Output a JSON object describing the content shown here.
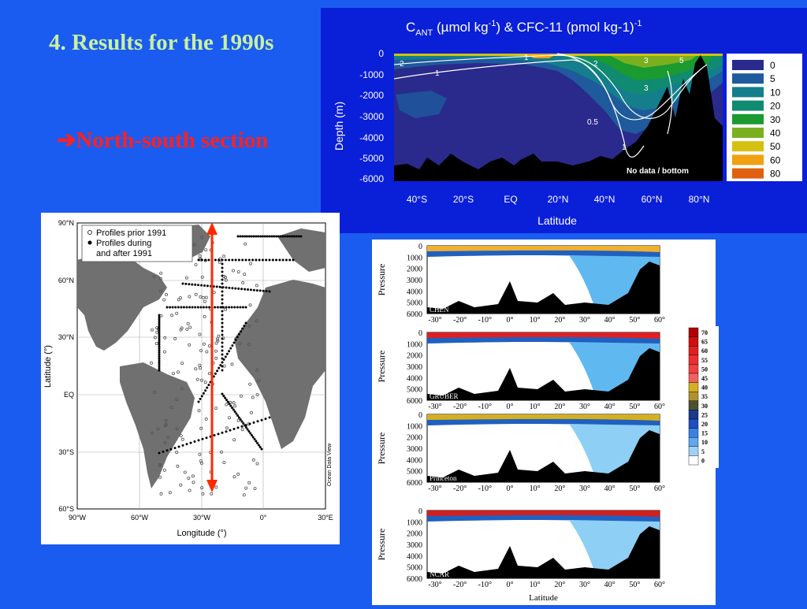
{
  "slide": {
    "title": "4. Results for the 1990s",
    "arrow_glyph": "➔",
    "subtitle": "North-south section"
  },
  "top_section": {
    "title_main": "C",
    "title_sub": "ANT",
    "title_rest": " (µmol kg",
    "title_sup1": "-1",
    "title_rest2": ") & CFC-11 (pmol  kg-1)",
    "title_sup2": "-1",
    "ylabel": "Depth (m)",
    "xlabel": "Latitude",
    "depth_ticks": [
      "0",
      "-1000",
      "-2000",
      "-3000",
      "-4000",
      "-5000",
      "-6000"
    ],
    "lat_ticks": [
      "40°S",
      "20°S",
      "EQ",
      "20°N",
      "40°N",
      "60°N",
      "80°N"
    ],
    "contour_labels": [
      "2",
      "1",
      "1",
      "2",
      "3",
      "5",
      "3",
      "0.5",
      "1"
    ],
    "no_data_label": "No data / bottom",
    "legend_values": [
      "0",
      "5",
      "10",
      "20",
      "30",
      "40",
      "50",
      "60",
      "80"
    ],
    "legend_colors": [
      "#2a2a8c",
      "#1e5a9c",
      "#147e8c",
      "#108a70",
      "#1a9a30",
      "#7ab020",
      "#d4c010",
      "#f0a010",
      "#e06010"
    ]
  },
  "map": {
    "legend_prior": "Profiles prior 1991",
    "legend_during_1": "Profiles during",
    "legend_during_2": "and after 1991",
    "ylabel": "Latitude (°)",
    "xlabel": "Longitude (°)",
    "lat_ticks": [
      "90°N",
      "60°N",
      "30°N",
      "EQ",
      "30°S",
      "60°S"
    ],
    "lon_ticks": [
      "90°W",
      "60°W",
      "30°W",
      "0°",
      "30°E"
    ],
    "watermark": "Ocean Data View"
  },
  "models": {
    "ylabel": "Pressure",
    "xlabel": "Latitude",
    "pressure_ticks": [
      "0",
      "1000",
      "2000",
      "3000",
      "4000",
      "5000",
      "6000"
    ],
    "lat_ticks": [
      "-30°",
      "-20°",
      "-10°",
      "0°",
      "10°",
      "20°",
      "30°",
      "40°",
      "50°",
      "60°"
    ],
    "panels": [
      "CHEN",
      "GRUBER",
      "Princeton",
      "NCAR"
    ]
  },
  "colorbar_small": {
    "values": [
      "70",
      "65",
      "60",
      "55",
      "50",
      "45",
      "40",
      "35",
      "30",
      "25",
      "20",
      "15",
      "10",
      "5",
      "0"
    ],
    "colors": [
      "#b00000",
      "#d01010",
      "#e02020",
      "#e83030",
      "#f04040",
      "#f06060",
      "#d4b020",
      "#b09030",
      "#4a5030",
      "#1a3a8a",
      "#2050c0",
      "#3a80e0",
      "#60a8f0",
      "#a0d0f8",
      "#ffffff"
    ]
  }
}
